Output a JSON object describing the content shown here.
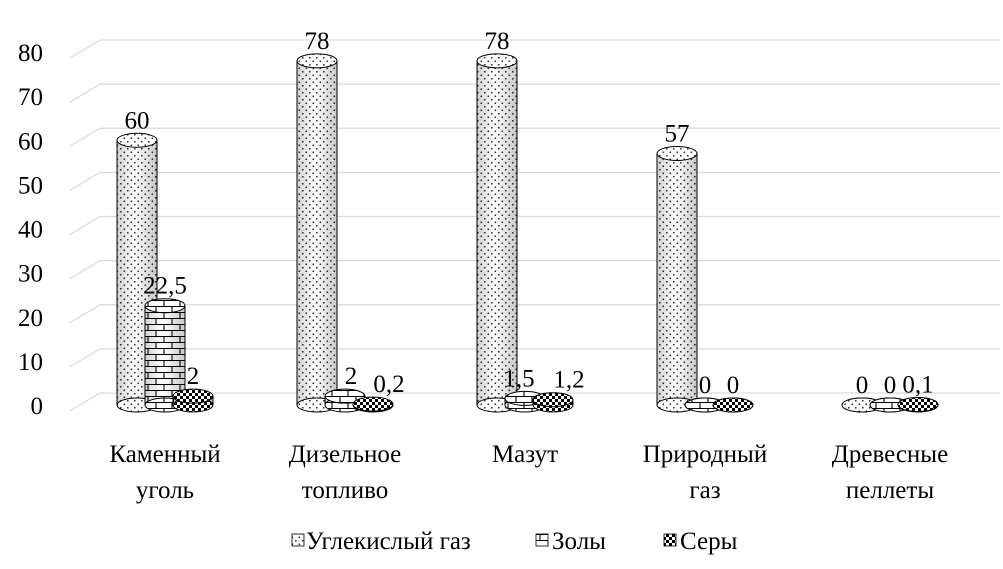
{
  "chart_data": {
    "type": "bar",
    "title": "",
    "xlabel": "",
    "ylabel": "",
    "ylim": [
      0,
      80
    ],
    "yticks": [
      0,
      10,
      20,
      30,
      40,
      50,
      60,
      70,
      80
    ],
    "grid": true,
    "legend_position": "bottom",
    "categories": [
      [
        "Каменный",
        "уголь"
      ],
      [
        "Дизельное",
        "топливо"
      ],
      [
        "Мазут"
      ],
      [
        "Природный",
        "газ"
      ],
      [
        "Древесные",
        "пеллеты"
      ]
    ],
    "series": [
      {
        "name": "Углекислый газ",
        "pattern": "dots",
        "values": [
          60,
          78,
          78,
          57,
          0
        ],
        "labels": [
          "60",
          "78",
          "78",
          "57",
          "0"
        ]
      },
      {
        "name": "Золы",
        "pattern": "bricks",
        "values": [
          22.5,
          2,
          1.5,
          0,
          0
        ],
        "labels": [
          "22,5",
          "2",
          "1,5",
          "0",
          "0"
        ]
      },
      {
        "name": "Серы",
        "pattern": "checker",
        "values": [
          2,
          0.2,
          1.2,
          0,
          0.1
        ],
        "labels": [
          "2",
          "0,2",
          "1,2",
          "0",
          "0,1"
        ]
      }
    ]
  }
}
